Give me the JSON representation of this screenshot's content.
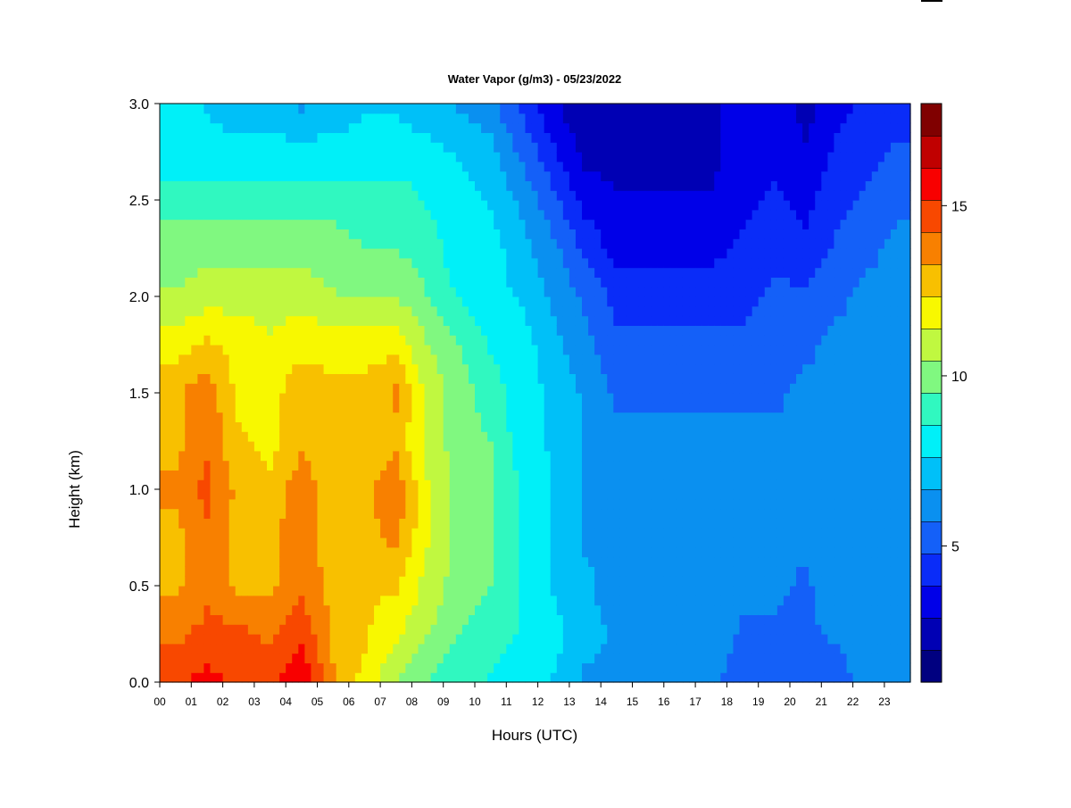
{
  "chart_data": {
    "type": "heatmap",
    "title": "Water Vapor (g/m3) - 05/23/2022",
    "xlabel": "Hours (UTC)",
    "ylabel": "Height (km)",
    "x_tick_labels": [
      "00",
      "01",
      "02",
      "03",
      "04",
      "05",
      "06",
      "07",
      "08",
      "09",
      "10",
      "11",
      "12",
      "13",
      "14",
      "15",
      "16",
      "17",
      "18",
      "19",
      "20",
      "21",
      "22",
      "23"
    ],
    "x_range_hours": [
      0,
      24
    ],
    "y_tick_labels": [
      "0.0",
      "0.5",
      "1.0",
      "1.5",
      "2.0",
      "2.5",
      "3.0"
    ],
    "ylim": [
      0.0,
      3.0
    ],
    "colorbar": {
      "min": 1,
      "max": 18,
      "tick_values": [
        5,
        10,
        15
      ],
      "tick_labels": [
        "5",
        "10",
        "15"
      ],
      "colors": [
        "#000080",
        "#0000b4",
        "#0000e8",
        "#0a2cf8",
        "#1460f8",
        "#0a90f0",
        "#00c0f8",
        "#00f0f8",
        "#30f8c0",
        "#80f880",
        "#c0f840",
        "#f8f800",
        "#f8c000",
        "#f88000",
        "#f84800",
        "#f80000",
        "#c00000",
        "#800000"
      ]
    },
    "grid": false,
    "legend": "colorbar-right",
    "height_km": [
      0.0,
      0.25,
      0.5,
      0.75,
      1.0,
      1.25,
      1.5,
      1.75,
      2.0,
      2.25,
      2.5,
      2.75,
      3.0
    ],
    "series": [
      {
        "hour": 0.0,
        "values": [
          15.0,
          14.0,
          13.0,
          13.0,
          13.5,
          13.0,
          13.0,
          12.0,
          10.5,
          10.0,
          9.0,
          8.0,
          8.0
        ]
      },
      {
        "hour": 1.0,
        "values": [
          15.5,
          14.5,
          14.0,
          14.0,
          14.5,
          14.0,
          14.0,
          12.5,
          11.0,
          10.0,
          9.0,
          8.0,
          7.5
        ]
      },
      {
        "hour": 2.0,
        "values": [
          15.0,
          14.5,
          13.0,
          13.0,
          13.0,
          12.5,
          12.0,
          12.0,
          11.0,
          10.0,
          9.0,
          8.0,
          7.0
        ]
      },
      {
        "hour": 3.0,
        "values": [
          15.0,
          14.0,
          13.0,
          13.0,
          12.5,
          12.0,
          12.0,
          11.5,
          11.0,
          10.0,
          9.0,
          8.0,
          7.0
        ]
      },
      {
        "hour": 4.0,
        "values": [
          16.0,
          15.0,
          14.0,
          14.0,
          14.0,
          13.0,
          13.0,
          12.0,
          11.0,
          10.0,
          9.0,
          8.0,
          6.5
        ]
      },
      {
        "hour": 5.0,
        "values": [
          13.5,
          13.0,
          13.0,
          12.5,
          12.5,
          12.5,
          12.5,
          12.0,
          10.5,
          10.0,
          9.0,
          8.0,
          7.0
        ]
      },
      {
        "hour": 6.0,
        "values": [
          12.0,
          12.5,
          12.5,
          13.0,
          13.0,
          12.5,
          12.5,
          12.0,
          10.5,
          9.5,
          9.0,
          8.0,
          7.5
        ]
      },
      {
        "hour": 7.0,
        "values": [
          10.5,
          11.5,
          12.5,
          13.5,
          14.0,
          13.0,
          13.5,
          12.0,
          10.5,
          9.5,
          9.0,
          8.0,
          7.5
        ]
      },
      {
        "hour": 8.0,
        "values": [
          9.5,
          10.5,
          11.0,
          11.5,
          11.5,
          11.0,
          11.0,
          10.5,
          9.5,
          9.0,
          8.5,
          8.0,
          7.0
        ]
      },
      {
        "hour": 9.0,
        "values": [
          8.5,
          9.5,
          10.0,
          10.0,
          10.0,
          10.0,
          10.0,
          9.5,
          8.5,
          8.0,
          8.0,
          7.5,
          6.5
        ]
      },
      {
        "hour": 10.0,
        "values": [
          8.5,
          9.0,
          9.5,
          9.5,
          9.5,
          9.5,
          9.0,
          8.5,
          8.0,
          8.0,
          7.5,
          7.0,
          6.0
        ]
      },
      {
        "hour": 11.0,
        "values": [
          8.0,
          8.5,
          8.5,
          8.5,
          8.5,
          8.0,
          8.0,
          8.0,
          7.5,
          7.0,
          6.5,
          5.5,
          4.5
        ]
      },
      {
        "hour": 12.0,
        "values": [
          7.5,
          8.0,
          7.5,
          7.5,
          7.5,
          7.5,
          7.5,
          7.0,
          6.5,
          6.0,
          5.0,
          4.0,
          3.0
        ]
      },
      {
        "hour": 13.0,
        "values": [
          6.5,
          7.0,
          7.0,
          6.5,
          6.5,
          6.5,
          6.5,
          6.0,
          5.5,
          4.5,
          3.5,
          2.5,
          2.0
        ]
      },
      {
        "hour": 14.0,
        "values": [
          6.5,
          6.5,
          6.0,
          6.0,
          6.0,
          6.0,
          5.5,
          5.0,
          4.5,
          3.5,
          3.0,
          2.5,
          2.0
        ]
      },
      {
        "hour": 15.0,
        "values": [
          6.5,
          6.5,
          6.0,
          6.0,
          6.0,
          6.0,
          5.5,
          5.0,
          4.5,
          3.5,
          3.0,
          2.5,
          2.0
        ]
      },
      {
        "hour": 16.0,
        "values": [
          6.0,
          6.5,
          6.0,
          6.0,
          6.0,
          6.0,
          5.5,
          5.0,
          4.5,
          3.5,
          3.0,
          2.5,
          2.0
        ]
      },
      {
        "hour": 17.0,
        "values": [
          6.0,
          6.5,
          6.0,
          6.0,
          6.0,
          6.0,
          5.5,
          5.0,
          4.5,
          3.5,
          3.0,
          2.5,
          2.5
        ]
      },
      {
        "hour": 18.0,
        "values": [
          5.0,
          5.5,
          6.0,
          6.0,
          6.0,
          6.0,
          5.5,
          5.0,
          4.5,
          4.0,
          3.5,
          3.5,
          3.5
        ]
      },
      {
        "hour": 19.0,
        "values": [
          5.0,
          5.5,
          6.0,
          6.0,
          6.0,
          6.0,
          5.5,
          5.5,
          5.0,
          4.5,
          4.0,
          3.5,
          3.5
        ]
      },
      {
        "hour": 20.0,
        "values": [
          5.0,
          5.5,
          5.5,
          6.0,
          6.0,
          6.0,
          6.0,
          5.5,
          5.0,
          4.0,
          3.5,
          3.0,
          2.5
        ]
      },
      {
        "hour": 21.0,
        "values": [
          5.0,
          6.0,
          6.5,
          6.0,
          6.0,
          6.0,
          6.0,
          6.0,
          5.5,
          5.0,
          4.5,
          4.0,
          3.5
        ]
      },
      {
        "hour": 22.0,
        "values": [
          6.5,
          6.5,
          6.5,
          6.5,
          6.5,
          6.5,
          6.5,
          6.0,
          6.0,
          5.5,
          5.0,
          4.5,
          4.0
        ]
      },
      {
        "hour": 23.0,
        "values": [
          6.5,
          6.5,
          6.5,
          6.5,
          6.5,
          6.5,
          6.5,
          6.5,
          6.0,
          6.0,
          5.5,
          5.0,
          4.0
        ]
      }
    ]
  }
}
